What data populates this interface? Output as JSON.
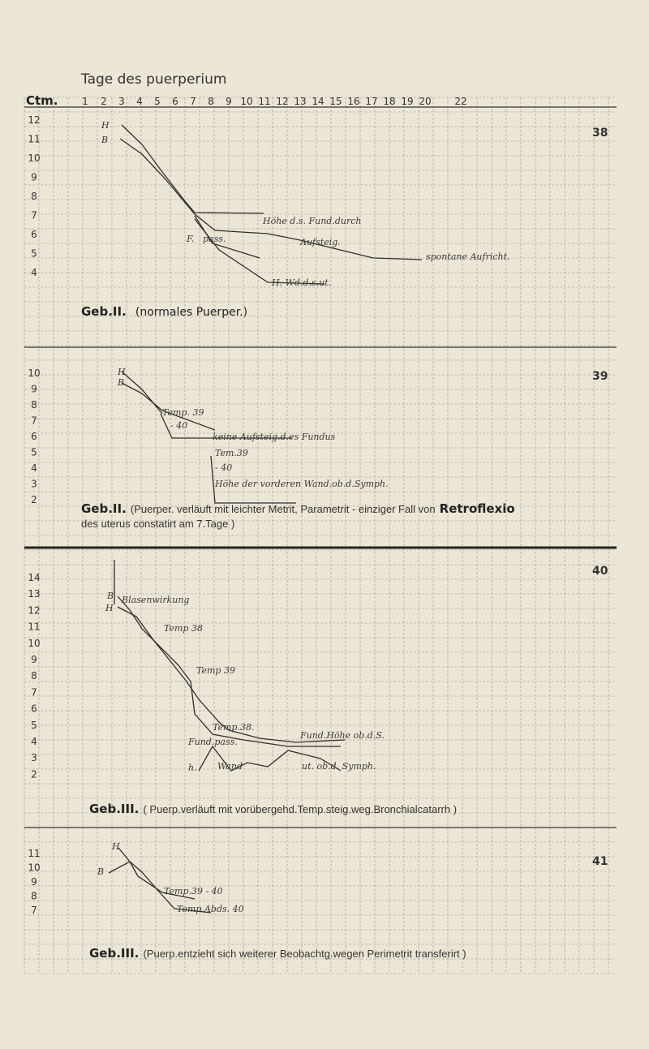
{
  "header": {
    "title": "Tage des puerperium",
    "axis_label": "Ctm.",
    "days": [
      "1",
      "2",
      "3",
      "4",
      "5",
      "6",
      "7",
      "8",
      "9",
      "10",
      "11",
      "12",
      "13",
      "14",
      "15",
      "16",
      "17",
      "18",
      "19",
      "20",
      "22"
    ]
  },
  "panels": [
    {
      "number": "38",
      "y_ticks": [
        "12",
        "11",
        "10",
        "9",
        "8",
        "7",
        "6",
        "5",
        "4"
      ],
      "labels": {
        "h": "H",
        "b": "B",
        "f": "F.",
        "pass": "pass.",
        "hohe": "Höhe d.s. Fund.durch",
        "aufsteig": "Aufsteig.",
        "spontane": "spontane Aufricht.",
        "wand": "H. Wd.d.s.ut."
      },
      "caption_bold": "Geb.II.",
      "caption_text": "(normales Puerper.)"
    },
    {
      "number": "39",
      "y_ticks": [
        "10",
        "9",
        "8",
        "7",
        "6",
        "5",
        "4",
        "3",
        "2"
      ],
      "labels": {
        "h": "H",
        "b": "B",
        "temp1": "Temp. 39",
        "temp1b": "- 40",
        "keine": "keine Aufsteig.d.es Fundus",
        "temp2": "Tem.39",
        "temp2b": "- 40",
        "hohe": "Höhe der vorderen Wand.ob.d.Symph."
      },
      "caption_bold": "Geb.II.",
      "caption_line1": "(Puerper. verläuft mit leichter Metrit, Parametrit - einziger Fall von",
      "caption_retro": "Retroflexio",
      "caption_line2": "des uterus constatirt am 7.Tage )"
    },
    {
      "number": "40",
      "y_ticks": [
        "14",
        "13",
        "12",
        "11",
        "10",
        "9",
        "8",
        "7",
        "6",
        "5",
        "4",
        "3",
        "2"
      ],
      "labels": {
        "blasen": "Blasenwirkung",
        "b": "B",
        "h": "H",
        "temp38": "Temp 38",
        "temp39": "Temp 39",
        "temp38b": "Temp.38.",
        "fundpass": "Fund.pass.",
        "fundhohe": "Fund.Höhe ob.d.S.",
        "h2": "h.",
        "wand": "Wand",
        "ut": "ut. ob.d. Symph."
      },
      "caption_bold": "Geb.III.",
      "caption_text": "( Puerp.verläuft mit vorübergehd.Temp.steig.weg.Bronchialcatarrh )"
    },
    {
      "number": "41",
      "y_ticks": [
        "11",
        "10",
        "9",
        "8",
        "7"
      ],
      "labels": {
        "h": "H",
        "b": "B",
        "temp1": "Temp.39 - 40",
        "temp2": "Temp.Abds. 40"
      },
      "caption_bold": "Geb.III.",
      "caption_text": "(Puerp.entzieht sich weiterer Beobachtg.wegen Perimetrit transferirt )"
    }
  ]
}
